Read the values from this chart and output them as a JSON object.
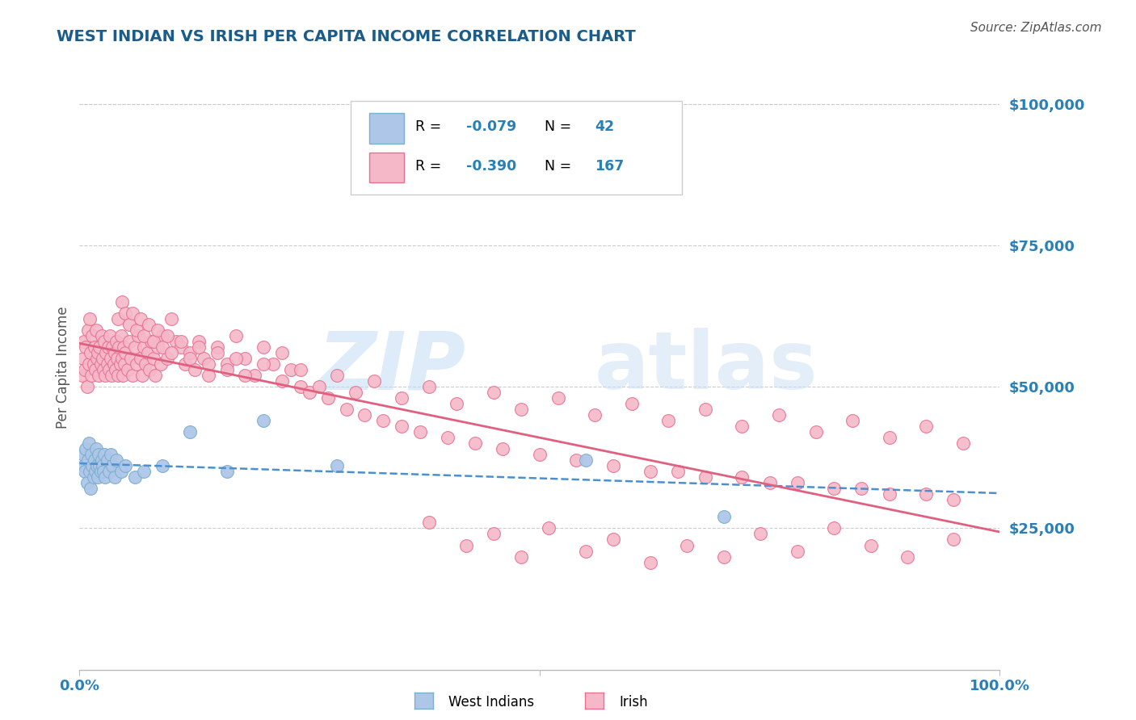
{
  "title": "WEST INDIAN VS IRISH PER CAPITA INCOME CORRELATION CHART",
  "source": "Source: ZipAtlas.com",
  "ylabel": "Per Capita Income",
  "ylim": [
    0,
    107000
  ],
  "xlim": [
    0.0,
    1.0
  ],
  "title_color": "#1a5c8a",
  "axis_label_color": "#2980b9",
  "ylabel_color": "#555555",
  "source_color": "#555555",
  "west_indian_color": "#aec6e8",
  "west_indian_edge": "#7aafcf",
  "irish_color": "#f5b8c8",
  "irish_edge": "#e87090",
  "west_indian_line_color": "#4a90d0",
  "irish_line_color": "#e06080",
  "watermark_zip_color": "#b8d4ef",
  "watermark_atlas_color": "#c8dff5",
  "west_indian_x": [
    0.004,
    0.005,
    0.006,
    0.007,
    0.008,
    0.009,
    0.01,
    0.011,
    0.012,
    0.013,
    0.014,
    0.015,
    0.016,
    0.017,
    0.018,
    0.019,
    0.02,
    0.021,
    0.022,
    0.023,
    0.024,
    0.025,
    0.026,
    0.027,
    0.028,
    0.03,
    0.032,
    0.034,
    0.036,
    0.038,
    0.04,
    0.045,
    0.05,
    0.06,
    0.07,
    0.09,
    0.12,
    0.16,
    0.2,
    0.28,
    0.55,
    0.7
  ],
  "west_indian_y": [
    38000,
    36000,
    35000,
    39000,
    33000,
    37000,
    40000,
    35000,
    32000,
    38000,
    36000,
    34000,
    37000,
    35000,
    39000,
    36000,
    34000,
    38000,
    36000,
    35000,
    37000,
    36000,
    35000,
    38000,
    34000,
    37000,
    35000,
    38000,
    36000,
    34000,
    37000,
    35000,
    36000,
    34000,
    35000,
    36000,
    42000,
    35000,
    44000,
    36000,
    37000,
    27000
  ],
  "irish_x": [
    0.003,
    0.004,
    0.005,
    0.006,
    0.007,
    0.008,
    0.009,
    0.01,
    0.011,
    0.012,
    0.013,
    0.014,
    0.015,
    0.016,
    0.017,
    0.018,
    0.019,
    0.02,
    0.021,
    0.022,
    0.023,
    0.024,
    0.025,
    0.026,
    0.027,
    0.028,
    0.029,
    0.03,
    0.031,
    0.032,
    0.033,
    0.034,
    0.035,
    0.036,
    0.037,
    0.038,
    0.039,
    0.04,
    0.041,
    0.042,
    0.043,
    0.044,
    0.045,
    0.046,
    0.047,
    0.048,
    0.049,
    0.05,
    0.052,
    0.054,
    0.056,
    0.058,
    0.06,
    0.062,
    0.064,
    0.066,
    0.068,
    0.07,
    0.072,
    0.074,
    0.076,
    0.078,
    0.08,
    0.082,
    0.085,
    0.088,
    0.09,
    0.095,
    0.1,
    0.105,
    0.11,
    0.115,
    0.12,
    0.125,
    0.13,
    0.135,
    0.14,
    0.15,
    0.16,
    0.17,
    0.18,
    0.19,
    0.2,
    0.21,
    0.22,
    0.23,
    0.24,
    0.25,
    0.27,
    0.29,
    0.31,
    0.33,
    0.35,
    0.37,
    0.4,
    0.43,
    0.46,
    0.5,
    0.54,
    0.58,
    0.62,
    0.65,
    0.68,
    0.72,
    0.75,
    0.78,
    0.82,
    0.85,
    0.88,
    0.92,
    0.95,
    0.042,
    0.046,
    0.05,
    0.054,
    0.058,
    0.062,
    0.066,
    0.07,
    0.075,
    0.08,
    0.085,
    0.09,
    0.095,
    0.1,
    0.11,
    0.12,
    0.13,
    0.14,
    0.15,
    0.16,
    0.17,
    0.18,
    0.2,
    0.22,
    0.24,
    0.26,
    0.28,
    0.3,
    0.32,
    0.35,
    0.38,
    0.41,
    0.45,
    0.48,
    0.52,
    0.56,
    0.6,
    0.64,
    0.68,
    0.72,
    0.76,
    0.8,
    0.84,
    0.88,
    0.92,
    0.96,
    0.38,
    0.42,
    0.45,
    0.48,
    0.51,
    0.55,
    0.58,
    0.62,
    0.66,
    0.7,
    0.74,
    0.78,
    0.82,
    0.86,
    0.9,
    0.95
  ],
  "irish_y": [
    52000,
    55000,
    58000,
    53000,
    57000,
    50000,
    60000,
    54000,
    62000,
    56000,
    52000,
    59000,
    54000,
    57000,
    53000,
    60000,
    55000,
    56000,
    52000,
    57000,
    54000,
    59000,
    55000,
    53000,
    58000,
    52000,
    56000,
    54000,
    57000,
    53000,
    59000,
    55000,
    52000,
    57000,
    54000,
    56000,
    53000,
    58000,
    55000,
    52000,
    57000,
    54000,
    59000,
    55000,
    52000,
    57000,
    54000,
    56000,
    53000,
    58000,
    55000,
    52000,
    57000,
    54000,
    59000,
    55000,
    52000,
    57000,
    54000,
    56000,
    53000,
    58000,
    55000,
    52000,
    57000,
    54000,
    59000,
    55000,
    62000,
    58000,
    57000,
    54000,
    56000,
    53000,
    58000,
    55000,
    52000,
    57000,
    54000,
    59000,
    55000,
    52000,
    57000,
    54000,
    56000,
    53000,
    50000,
    49000,
    48000,
    46000,
    45000,
    44000,
    43000,
    42000,
    41000,
    40000,
    39000,
    38000,
    37000,
    36000,
    35000,
    35000,
    34000,
    34000,
    33000,
    33000,
    32000,
    32000,
    31000,
    31000,
    30000,
    62000,
    65000,
    63000,
    61000,
    63000,
    60000,
    62000,
    59000,
    61000,
    58000,
    60000,
    57000,
    59000,
    56000,
    58000,
    55000,
    57000,
    54000,
    56000,
    53000,
    55000,
    52000,
    54000,
    51000,
    53000,
    50000,
    52000,
    49000,
    51000,
    48000,
    50000,
    47000,
    49000,
    46000,
    48000,
    45000,
    47000,
    44000,
    46000,
    43000,
    45000,
    42000,
    44000,
    41000,
    43000,
    40000,
    26000,
    22000,
    24000,
    20000,
    25000,
    21000,
    23000,
    19000,
    22000,
    20000,
    24000,
    21000,
    25000,
    22000,
    20000,
    23000
  ]
}
